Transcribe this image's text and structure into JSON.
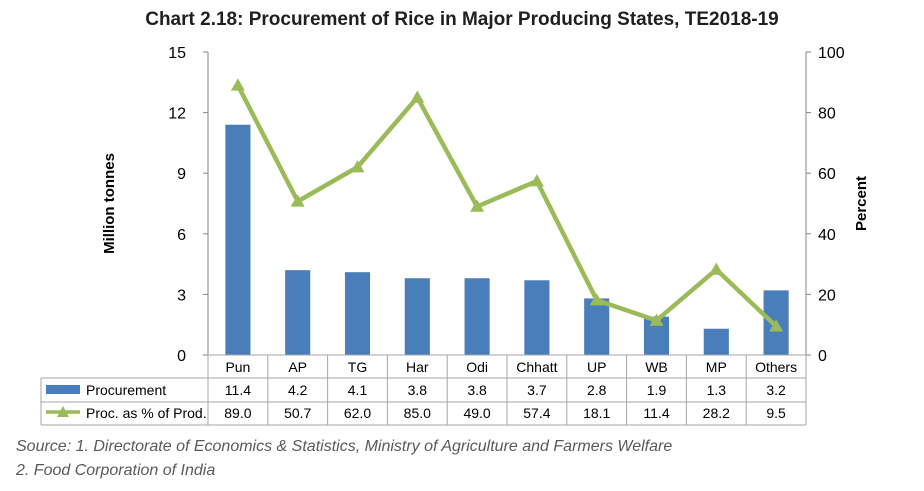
{
  "chart_data": {
    "type": "bar",
    "title": "Chart 2.18: Procurement of Rice in Major Producing States, TE2018-19",
    "categories": [
      "Pun",
      "AP",
      "TG",
      "Har",
      "Odi",
      "Chhatt",
      "UP",
      "WB",
      "MP",
      "Others"
    ],
    "series": [
      {
        "name": "Procurement",
        "type": "bar",
        "axis": "left",
        "color": "#4A7EBB",
        "values": [
          11.4,
          4.2,
          4.1,
          3.8,
          3.8,
          3.7,
          2.8,
          1.9,
          1.3,
          3.2
        ],
        "labels": [
          "11.4",
          "4.2",
          "4.1",
          "3.8",
          "3.8",
          "3.7",
          "2.8",
          "1.9",
          "1.3",
          "3.2"
        ]
      },
      {
        "name": "Proc. as % of Prod.",
        "type": "line",
        "axis": "right",
        "color": "#9BBB59",
        "marker": "triangle",
        "values": [
          89.0,
          50.7,
          62.0,
          85.0,
          49.0,
          57.4,
          18.1,
          11.4,
          28.2,
          9.5
        ],
        "labels": [
          "89.0",
          "50.7",
          "62.0",
          "85.0",
          "49.0",
          "57.4",
          "18.1",
          "11.4",
          "28.2",
          "9.5"
        ]
      }
    ],
    "ylabel": "Million tonnes",
    "y2label": "Percent",
    "ylim": [
      0,
      15
    ],
    "y2lim": [
      0,
      100
    ],
    "yticks": [
      "0",
      "3",
      "6",
      "9",
      "12",
      "15"
    ],
    "y2ticks": [
      "0",
      "20",
      "40",
      "60",
      "80",
      "100"
    ],
    "grid": false,
    "legend": "data-table"
  },
  "source": {
    "line1": "Source:   1. Directorate of Economics & Statistics, Ministry of Agriculture and Farmers Welfare",
    "line2": "2. Food Corporation of India"
  }
}
